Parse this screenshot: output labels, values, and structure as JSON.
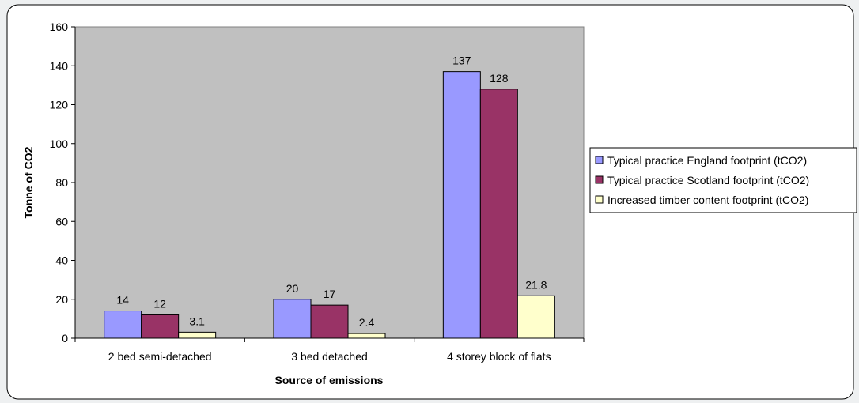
{
  "chart_data": {
    "type": "bar",
    "title": "",
    "xlabel": "Source of emissions",
    "ylabel": "Tonne of CO2",
    "ylim": [
      0,
      160
    ],
    "yticks": [
      "0",
      "20",
      "40",
      "60",
      "80",
      "100",
      "120",
      "140",
      "160"
    ],
    "categories": [
      "2 bed semi-detached",
      "3 bed detached",
      "4 storey block of flats"
    ],
    "series": [
      {
        "name": "Typical practice England footprint (tCO2)",
        "values": [
          14,
          20,
          137
        ],
        "labels": [
          "14",
          "20",
          "137"
        ],
        "color": "#9999ff"
      },
      {
        "name": "Typical practice Scotland footprint (tCO2)",
        "values": [
          12,
          17,
          128
        ],
        "labels": [
          "12",
          "17",
          "128"
        ],
        "color": "#993366"
      },
      {
        "name": "Increased timber content footprint (tCO2)",
        "values": [
          3.1,
          2.4,
          21.8
        ],
        "labels": [
          "3.1",
          "2.4",
          "21.8"
        ],
        "color": "#ffffcc"
      }
    ],
    "plot_background": "#c0c0c0",
    "grid": false,
    "legend_position": "right"
  }
}
